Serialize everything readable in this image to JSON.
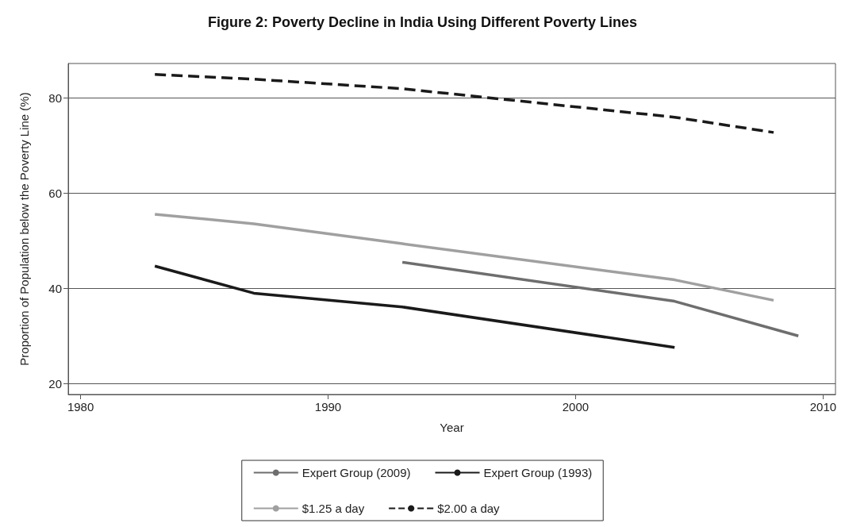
{
  "chart_data": {
    "type": "line",
    "title": "Figure 2: Poverty Decline in India Using Different Poverty Lines",
    "xlabel": "Year",
    "ylabel": "Proportion of Population below the Poverty Line (%)",
    "series": [
      {
        "name": "Expert Group (2009)",
        "color": "#6e6e6e",
        "x": [
          1993,
          2004,
          2009
        ],
        "values": [
          45.5,
          37.3,
          30
        ]
      },
      {
        "name": "Expert Group (1993)",
        "color": "#1a1a1a",
        "x": [
          1983,
          1987,
          1993,
          2004
        ],
        "values": [
          44.7,
          39,
          36.1,
          27.6
        ]
      },
      {
        "name": "$1.25 a day",
        "color": "#a0a0a0",
        "x": [
          1983,
          1987,
          1993,
          2004,
          2008
        ],
        "values": [
          55.6,
          53.6,
          49.4,
          41.8,
          37.5
        ]
      },
      {
        "name": "$2.00 a day",
        "color": "#1a1a1a",
        "line_style": "dashed",
        "x": [
          1983,
          1987,
          1993,
          2004,
          2008
        ],
        "values": [
          85,
          84,
          82,
          76,
          72.8
        ]
      }
    ],
    "xlim": [
      1979.5,
      2010.5
    ],
    "xticks": [
      1980,
      1990,
      2000,
      2010
    ],
    "ylim": [
      17.7,
      87.3
    ],
    "yticks": [
      20,
      40,
      60,
      80
    ],
    "grid": "y",
    "legend": "bottom",
    "marker": "none",
    "line_style": "solid"
  }
}
